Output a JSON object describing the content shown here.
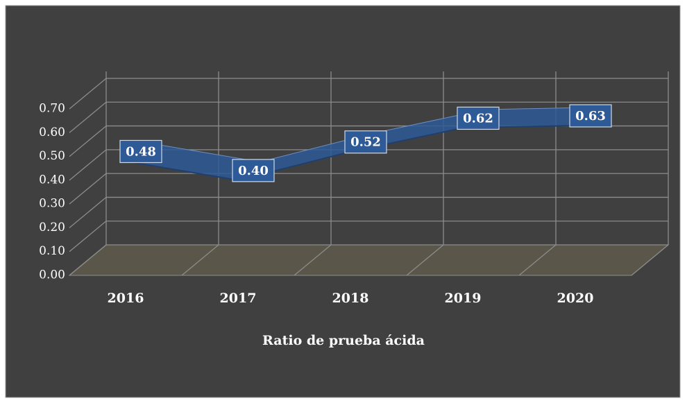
{
  "chart_data": {
    "type": "line3d",
    "x_label": "Ratio de prueba ácida",
    "categories": [
      "2016",
      "2017",
      "2018",
      "2019",
      "2020"
    ],
    "values": [
      0.48,
      0.4,
      0.52,
      0.62,
      0.63
    ],
    "value_labels": [
      "0.48",
      "0.40",
      "0.52",
      "0.62",
      "0.63"
    ],
    "color": "#2e5a97",
    "ylim": [
      0,
      0.7
    ],
    "yticks": [
      {
        "value": 0,
        "label": "0.00"
      },
      {
        "value": 0.1,
        "label": "0.10"
      },
      {
        "value": 0.2,
        "label": "0.20"
      },
      {
        "value": 0.3,
        "label": "0.30"
      },
      {
        "value": 0.4,
        "label": "0.40"
      },
      {
        "value": 0.5,
        "label": "0.50"
      },
      {
        "value": 0.6,
        "label": "0.60"
      },
      {
        "value": 0.7,
        "label": "0.70"
      }
    ],
    "grid": true
  }
}
